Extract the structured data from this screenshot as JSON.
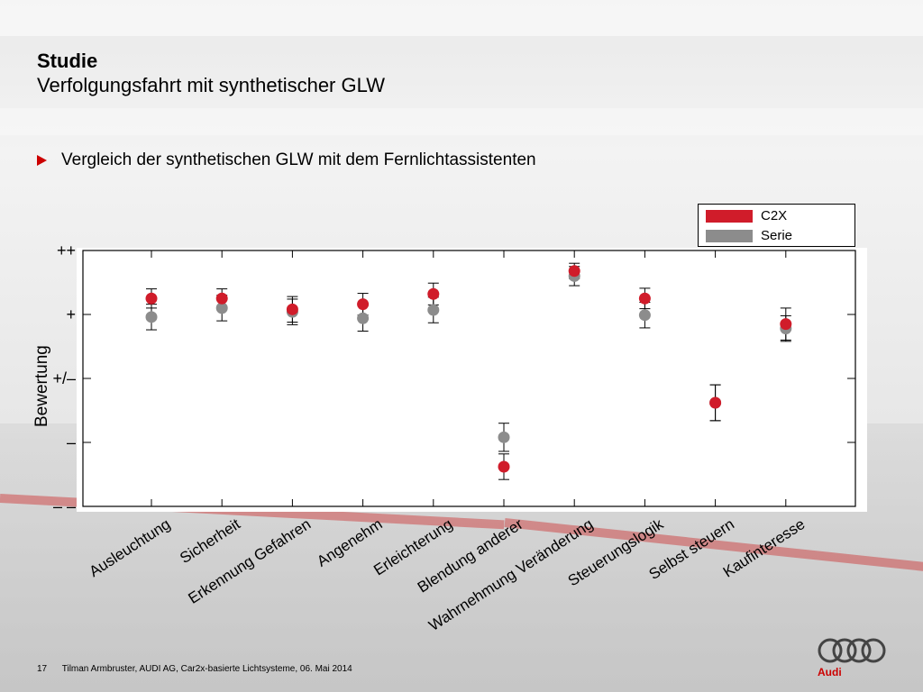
{
  "slide": {
    "title_bold": "Studie",
    "title_sub": "Verfolgungsfahrt mit synthetischer GLW",
    "bullet": "Vergleich der synthetischen GLW mit dem Fernlichtassistenten",
    "footer_page": "17",
    "footer_text": "Tilman Armbruster, AUDI AG, Car2x-basierte Lichtsysteme, 06. Mai 2014",
    "logo_text": "Audi",
    "accent_color": "#cc0000"
  },
  "chart_data": {
    "type": "scatter",
    "ylabel": "Bewertung",
    "xlabel": "",
    "y_tick_labels": [
      "– –",
      "–",
      "+/–",
      "+",
      "++"
    ],
    "ylim": [
      -2,
      2
    ],
    "categories": [
      "Ausleuchtung",
      "Sicherheit",
      "Erkennung Gefahren",
      "Angenehm",
      "Erleichterung",
      "Blendung anderer",
      "Wahrnehmung Veränderung",
      "Steuerungslogik",
      "Selbst steuern",
      "Kaufinteresse"
    ],
    "series": [
      {
        "name": "C2X",
        "color": "#d01c2a",
        "values": [
          1.25,
          1.25,
          1.08,
          1.16,
          1.32,
          -1.38,
          1.68,
          1.25,
          -0.38,
          0.85
        ],
        "err": [
          0.15,
          0.15,
          0.2,
          0.17,
          0.17,
          0.2,
          0.12,
          0.16,
          0.28,
          0.25
        ]
      },
      {
        "name": "Serie",
        "color": "#8c8c8c",
        "values": [
          0.96,
          1.1,
          1.04,
          0.94,
          1.07,
          -0.92,
          1.6,
          0.99,
          -0.38,
          0.78
        ],
        "err": [
          0.2,
          0.2,
          0.2,
          0.2,
          0.2,
          0.22,
          0.15,
          0.2,
          0.28,
          0.2
        ]
      }
    ],
    "grid": false,
    "legend_position": "top-right"
  }
}
